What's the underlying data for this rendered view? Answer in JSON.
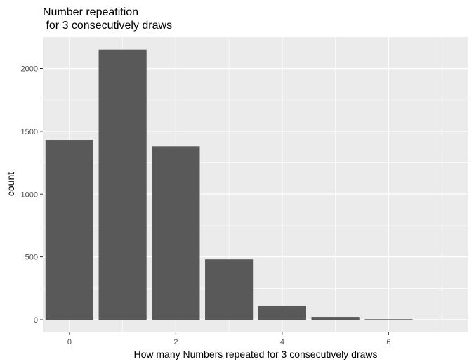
{
  "chart_data": {
    "type": "bar",
    "title": [
      "Number repeatition",
      " for 3 consecutively draws"
    ],
    "xlabel": "How many Numbers repeated for 3 consecutively draws",
    "ylabel": "count",
    "x": [
      0,
      1,
      2,
      3,
      4,
      5,
      6
    ],
    "values": [
      1432,
      2150,
      1380,
      480,
      112,
      22,
      4
    ],
    "xlim": [
      -0.5,
      7.5
    ],
    "ylim": [
      0,
      2250
    ],
    "x_ticks": [
      0,
      2,
      4,
      6
    ],
    "y_ticks": [
      0,
      500,
      1000,
      1500,
      2000
    ],
    "grid": true,
    "legend": "none",
    "colors": {
      "bar": "#595959",
      "panel": "#ebebeb",
      "grid_major": "#ffffff",
      "tick_text": "#4d4d4d",
      "tick_mark": "#333333"
    }
  }
}
